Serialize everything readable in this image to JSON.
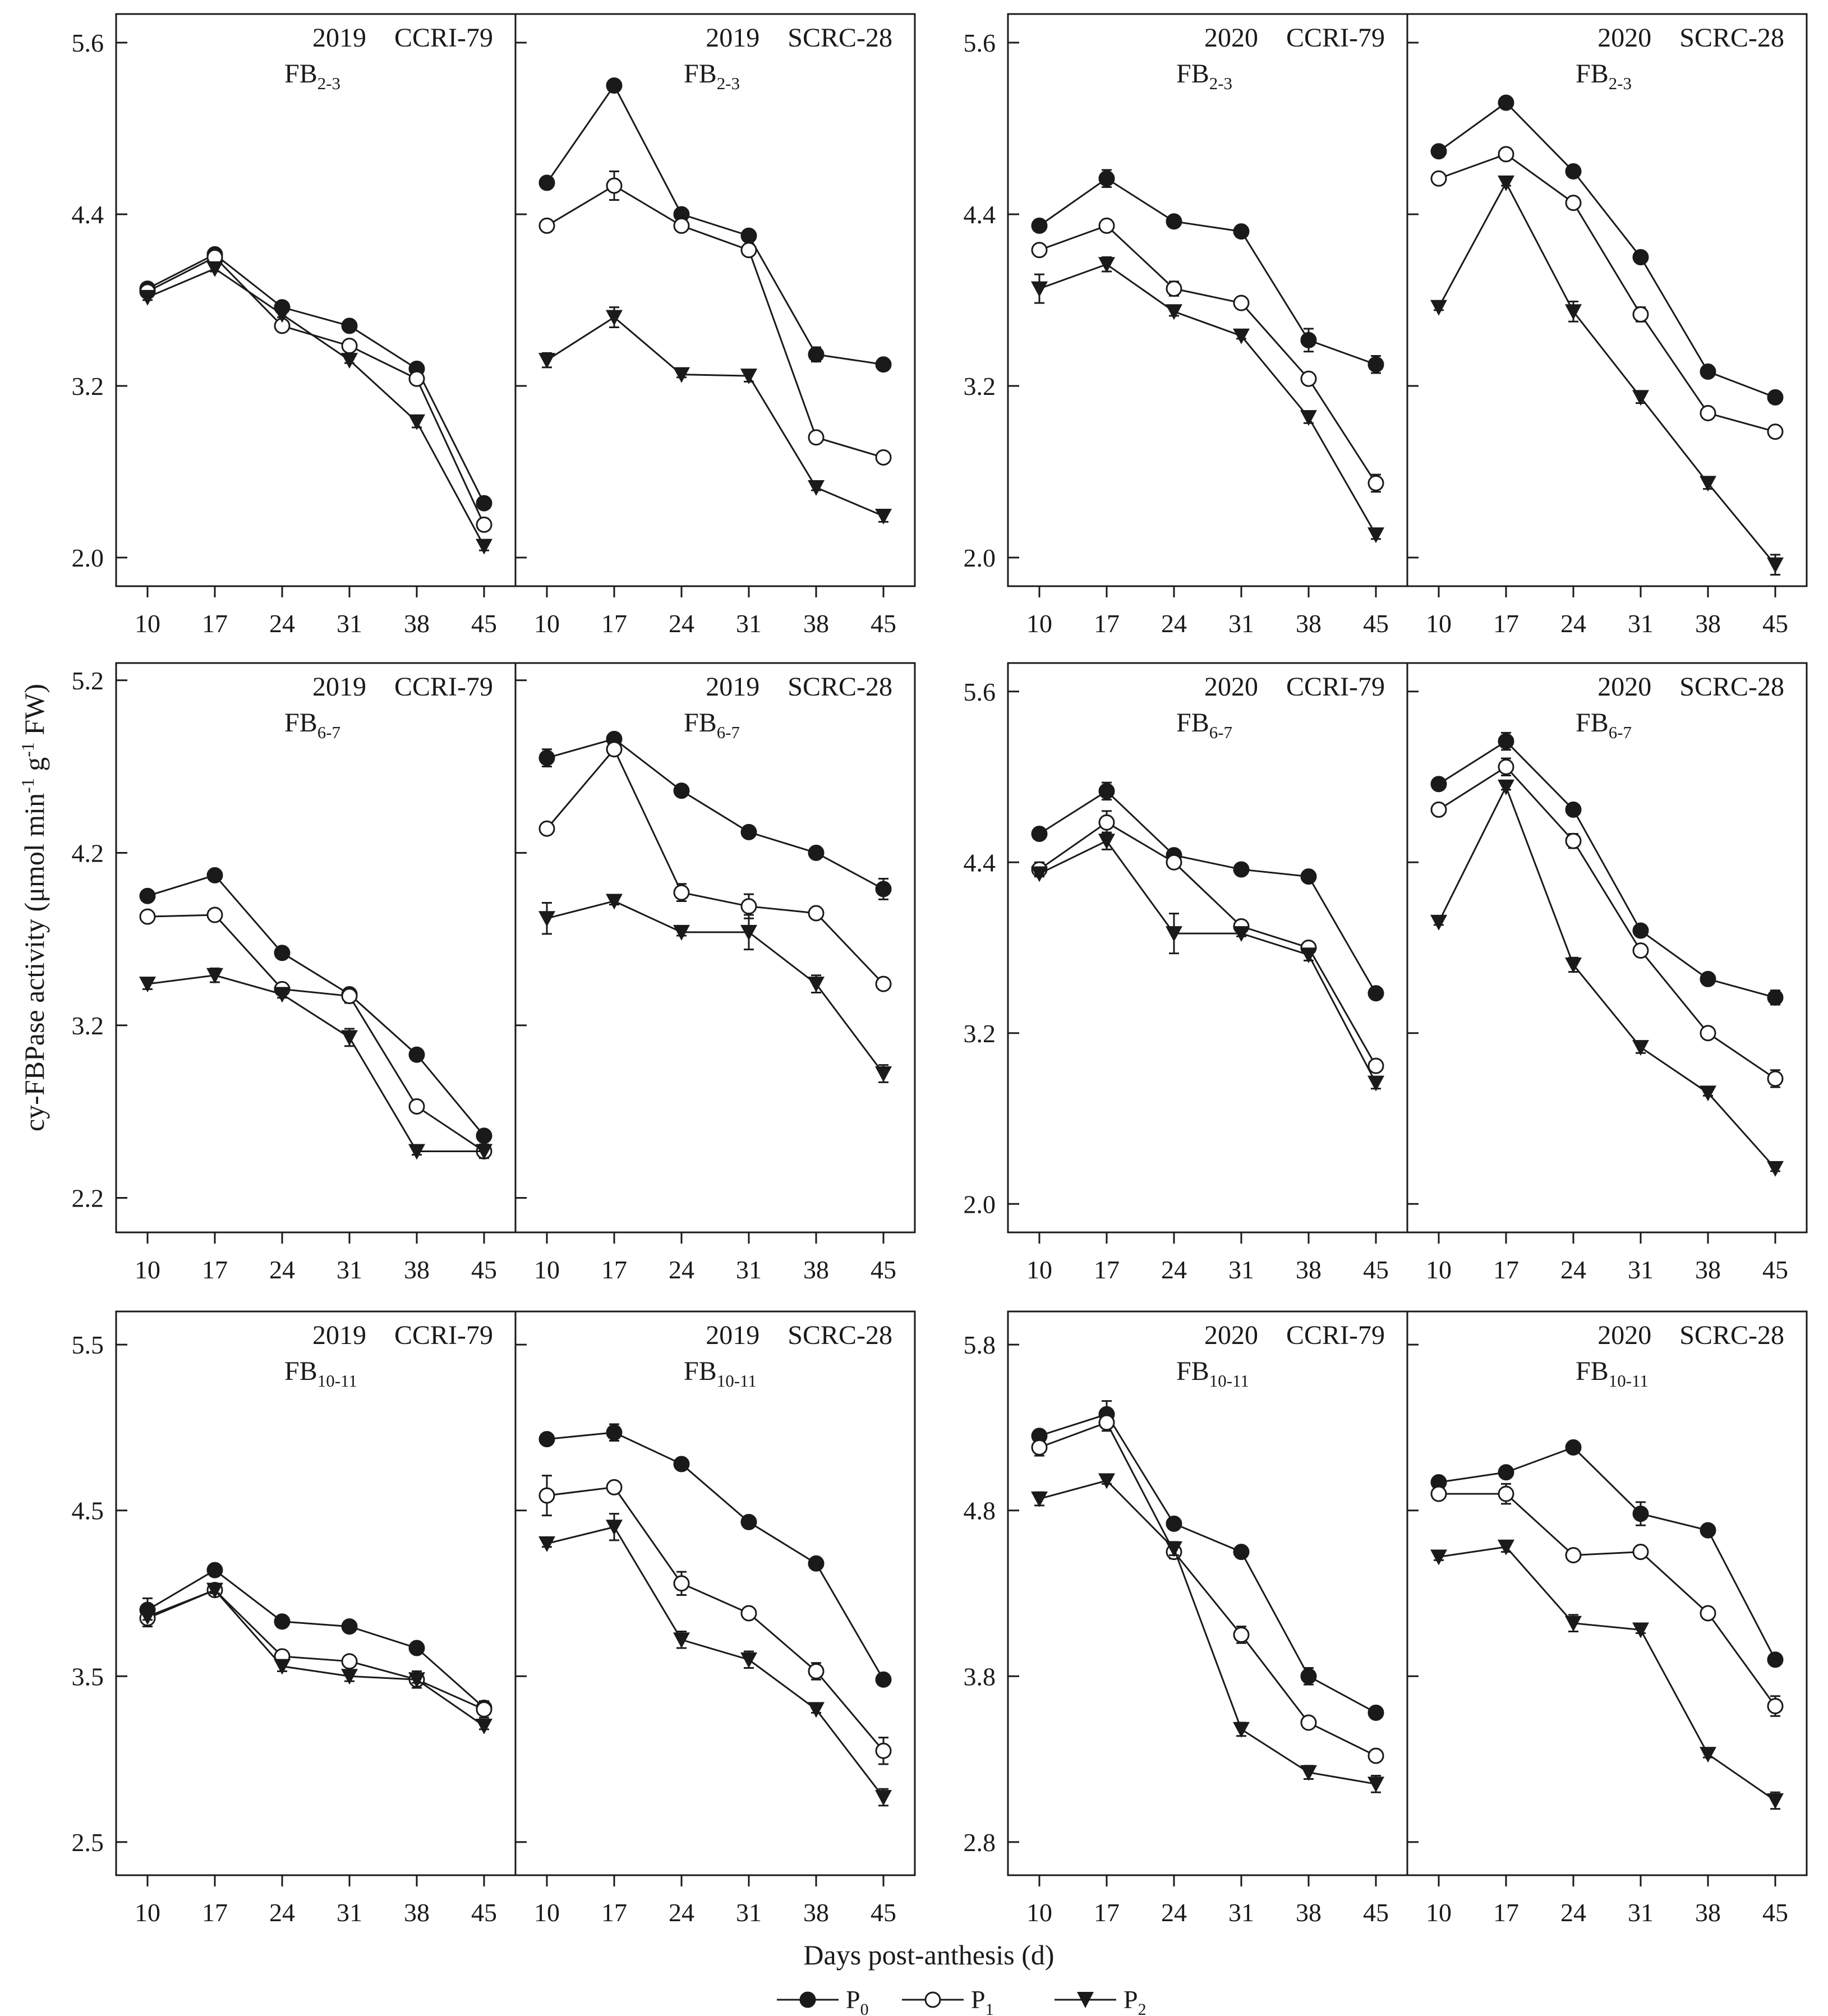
{
  "figure": {
    "ylabel_main": "cy-FBPase activity (μmol min",
    "ylabel_sup1": "-1",
    "ylabel_mid": " g",
    "ylabel_sup2": "-1",
    "ylabel_end": " FW)",
    "xlabel": "Days post-anthesis (d)"
  },
  "legend": [
    {
      "name": "P",
      "sub": "0",
      "marker": "filled-circle"
    },
    {
      "name": "P",
      "sub": "1",
      "marker": "open-circle"
    },
    {
      "name": "P",
      "sub": "2",
      "marker": "filled-triangle"
    }
  ],
  "chart_data": [
    {
      "type": "line",
      "year": "2019",
      "row": 0,
      "col": 0,
      "ylim": [
        1.8,
        5.8
      ],
      "yticks": [
        "2.0",
        "3.2",
        "4.4",
        "5.6"
      ],
      "ytick_values": [
        2.0,
        3.2,
        4.4,
        5.6
      ],
      "categories": [
        "10",
        "17",
        "24",
        "31",
        "38",
        "45"
      ],
      "panels": [
        {
          "cultivar": "CCRI-79",
          "pos": "FB",
          "pos_sub": "2-3",
          "series": [
            {
              "name": "P0",
              "values": [
                3.88,
                4.12,
                3.75,
                3.62,
                3.32,
                2.38
              ],
              "err": [
                0.02,
                0.02,
                0.02,
                0.02,
                0.03,
                0.03
              ]
            },
            {
              "name": "P1",
              "values": [
                3.86,
                4.1,
                3.62,
                3.48,
                3.25,
                2.23
              ],
              "err": [
                0.02,
                0.02,
                0.03,
                0.02,
                0.03,
                0.04
              ]
            },
            {
              "name": "P2",
              "values": [
                3.82,
                4.02,
                3.7,
                3.38,
                2.95,
                2.08
              ],
              "err": [
                0.02,
                0.02,
                0.02,
                0.02,
                0.04,
                0.03
              ]
            }
          ]
        },
        {
          "cultivar": "SCRC-28",
          "pos": "FB",
          "pos_sub": "2-3",
          "series": [
            {
              "name": "P0",
              "values": [
                4.62,
                5.3,
                4.4,
                4.25,
                3.42,
                3.35
              ],
              "err": [
                0.02,
                0.02,
                0.02,
                0.02,
                0.05,
                0.02
              ]
            },
            {
              "name": "P1",
              "values": [
                4.32,
                4.6,
                4.32,
                4.15,
                2.84,
                2.7
              ],
              "err": [
                0.04,
                0.1,
                0.02,
                0.02,
                0.03,
                0.02
              ]
            },
            {
              "name": "P2",
              "values": [
                3.38,
                3.68,
                3.28,
                3.27,
                2.49,
                2.29
              ],
              "err": [
                0.05,
                0.07,
                0.02,
                0.04,
                0.02,
                0.04
              ]
            }
          ]
        }
      ]
    },
    {
      "type": "line",
      "year": "2020",
      "row": 0,
      "col": 1,
      "ylim": [
        1.8,
        5.8
      ],
      "yticks": [
        "2.0",
        "3.2",
        "4.4",
        "5.6"
      ],
      "ytick_values": [
        2.0,
        3.2,
        4.4,
        5.6
      ],
      "categories": [
        "10",
        "17",
        "24",
        "31",
        "38",
        "45"
      ],
      "panels": [
        {
          "cultivar": "CCRI-79",
          "pos": "FB",
          "pos_sub": "2-3",
          "series": [
            {
              "name": "P0",
              "values": [
                4.32,
                4.65,
                4.35,
                4.28,
                3.52,
                3.35
              ],
              "err": [
                0.02,
                0.06,
                0.02,
                0.03,
                0.08,
                0.06
              ]
            },
            {
              "name": "P1",
              "values": [
                4.15,
                4.32,
                3.88,
                3.78,
                3.25,
                2.52
              ],
              "err": [
                0.03,
                0.03,
                0.05,
                0.02,
                0.03,
                0.06
              ]
            },
            {
              "name": "P2",
              "values": [
                3.88,
                4.05,
                3.72,
                3.55,
                2.98,
                2.16
              ],
              "err": [
                0.1,
                0.05,
                0.03,
                0.02,
                0.04,
                0.03
              ]
            }
          ]
        },
        {
          "cultivar": "SCRC-28",
          "pos": "FB",
          "pos_sub": "2-3",
          "series": [
            {
              "name": "P0",
              "values": [
                4.84,
                5.18,
                4.7,
                4.1,
                3.3,
                3.12
              ],
              "err": [
                0.02,
                0.02,
                0.02,
                0.02,
                0.03,
                0.02
              ]
            },
            {
              "name": "P1",
              "values": [
                4.65,
                4.82,
                4.48,
                3.7,
                3.01,
                2.88
              ],
              "err": [
                0.02,
                0.02,
                0.02,
                0.05,
                0.02,
                0.02
              ]
            },
            {
              "name": "P2",
              "values": [
                3.75,
                4.62,
                3.72,
                3.12,
                2.52,
                1.95
              ],
              "err": [
                0.02,
                0.02,
                0.07,
                0.04,
                0.04,
                0.07
              ]
            }
          ]
        }
      ]
    },
    {
      "type": "line",
      "year": "2019",
      "row": 1,
      "col": 0,
      "ylim": [
        2.0,
        5.3
      ],
      "yticks": [
        "2.2",
        "3.2",
        "4.2",
        "5.2"
      ],
      "ytick_values": [
        2.2,
        3.2,
        4.2,
        5.2
      ],
      "categories": [
        "10",
        "17",
        "24",
        "31",
        "38",
        "45"
      ],
      "panels": [
        {
          "cultivar": "CCRI-79",
          "pos": "FB",
          "pos_sub": "6-7",
          "series": [
            {
              "name": "P0",
              "values": [
                3.95,
                4.07,
                3.62,
                3.38,
                3.03,
                2.56
              ],
              "err": [
                0.02,
                0.02,
                0.02,
                0.02,
                0.02,
                0.02
              ]
            },
            {
              "name": "P1",
              "values": [
                3.83,
                3.84,
                3.41,
                3.37,
                2.73,
                2.47
              ],
              "err": [
                0.02,
                0.02,
                0.02,
                0.04,
                0.02,
                0.02
              ]
            },
            {
              "name": "P2",
              "values": [
                3.44,
                3.49,
                3.38,
                3.13,
                2.47,
                2.47
              ],
              "err": [
                0.03,
                0.04,
                0.02,
                0.05,
                0.02,
                0.04
              ]
            }
          ]
        },
        {
          "cultivar": "SCRC-28",
          "pos": "FB",
          "pos_sub": "6-7",
          "series": [
            {
              "name": "P0",
              "values": [
                4.75,
                4.86,
                4.56,
                4.32,
                4.2,
                3.99
              ],
              "err": [
                0.05,
                0.03,
                0.02,
                0.02,
                0.02,
                0.06
              ]
            },
            {
              "name": "P1",
              "values": [
                4.34,
                4.8,
                3.97,
                3.89,
                3.85,
                3.44
              ],
              "err": [
                0.02,
                0.02,
                0.05,
                0.07,
                0.02,
                0.02
              ]
            },
            {
              "name": "P2",
              "values": [
                3.82,
                3.92,
                3.74,
                3.74,
                3.44,
                2.92
              ],
              "err": [
                0.09,
                0.02,
                0.02,
                0.1,
                0.05,
                0.05
              ]
            }
          ]
        }
      ]
    },
    {
      "type": "line",
      "year": "2020",
      "row": 1,
      "col": 1,
      "ylim": [
        1.8,
        5.8
      ],
      "yticks": [
        "2.0",
        "3.2",
        "4.4",
        "5.6"
      ],
      "ytick_values": [
        2.0,
        3.2,
        4.4,
        5.6
      ],
      "categories": [
        "10",
        "17",
        "24",
        "31",
        "38",
        "45"
      ],
      "panels": [
        {
          "cultivar": "CCRI-79",
          "pos": "FB",
          "pos_sub": "6-7",
          "series": [
            {
              "name": "P0",
              "values": [
                4.6,
                4.9,
                4.45,
                4.35,
                4.3,
                3.48
              ],
              "err": [
                0.02,
                0.06,
                0.02,
                0.02,
                0.02,
                0.02
              ]
            },
            {
              "name": "P1",
              "values": [
                4.35,
                4.68,
                4.4,
                3.95,
                3.8,
                2.97
              ],
              "err": [
                0.05,
                0.08,
                0.02,
                0.02,
                0.04,
                0.02
              ]
            },
            {
              "name": "P2",
              "values": [
                4.32,
                4.55,
                3.9,
                3.9,
                3.75,
                2.85
              ],
              "err": [
                0.02,
                0.06,
                0.14,
                0.02,
                0.04,
                0.04
              ]
            }
          ]
        },
        {
          "cultivar": "SCRC-28",
          "pos": "FB",
          "pos_sub": "6-7",
          "series": [
            {
              "name": "P0",
              "values": [
                4.95,
                5.25,
                4.77,
                3.92,
                3.58,
                3.45
              ],
              "err": [
                0.02,
                0.06,
                0.02,
                0.02,
                0.02,
                0.05
              ]
            },
            {
              "name": "P1",
              "values": [
                4.77,
                5.07,
                4.55,
                3.78,
                3.2,
                2.88
              ],
              "err": [
                0.02,
                0.06,
                0.05,
                0.02,
                0.02,
                0.06
              ]
            },
            {
              "name": "P2",
              "values": [
                3.98,
                4.93,
                3.68,
                3.1,
                2.78,
                2.25
              ],
              "err": [
                0.02,
                0.02,
                0.05,
                0.04,
                0.02,
                0.02
              ]
            }
          ]
        }
      ]
    },
    {
      "type": "line",
      "year": "2019",
      "row": 2,
      "col": 0,
      "ylim": [
        2.3,
        5.7
      ],
      "yticks": [
        "2.5",
        "3.5",
        "4.5",
        "5.5"
      ],
      "ytick_values": [
        2.5,
        3.5,
        4.5,
        5.5
      ],
      "categories": [
        "10",
        "17",
        "24",
        "31",
        "38",
        "45"
      ],
      "panels": [
        {
          "cultivar": "CCRI-79",
          "pos": "FB",
          "pos_sub": "10-11",
          "series": [
            {
              "name": "P0",
              "values": [
                3.9,
                4.14,
                3.83,
                3.8,
                3.67,
                3.31
              ],
              "err": [
                0.07,
                0.02,
                0.02,
                0.02,
                0.02,
                0.02
              ]
            },
            {
              "name": "P1",
              "values": [
                3.85,
                4.02,
                3.62,
                3.59,
                3.48,
                3.3
              ],
              "err": [
                0.05,
                0.02,
                0.02,
                0.02,
                0.05,
                0.05
              ]
            },
            {
              "name": "P2",
              "values": [
                3.86,
                4.02,
                3.56,
                3.5,
                3.48,
                3.2
              ],
              "err": [
                0.02,
                0.02,
                0.03,
                0.03,
                0.02,
                0.02
              ]
            }
          ]
        },
        {
          "cultivar": "SCRC-28",
          "pos": "FB",
          "pos_sub": "10-11",
          "series": [
            {
              "name": "P0",
              "values": [
                4.93,
                4.97,
                4.78,
                4.43,
                4.18,
                3.48
              ],
              "err": [
                0.02,
                0.05,
                0.02,
                0.02,
                0.03,
                0.02
              ]
            },
            {
              "name": "P1",
              "values": [
                4.59,
                4.64,
                4.06,
                3.88,
                3.53,
                3.05
              ],
              "err": [
                0.12,
                0.02,
                0.07,
                0.02,
                0.05,
                0.08
              ]
            },
            {
              "name": "P2",
              "values": [
                4.3,
                4.4,
                3.72,
                3.6,
                3.3,
                2.77
              ],
              "err": [
                0.02,
                0.08,
                0.05,
                0.05,
                0.02,
                0.05
              ]
            }
          ]
        }
      ]
    },
    {
      "type": "line",
      "year": "2020",
      "row": 2,
      "col": 1,
      "ylim": [
        2.6,
        6.0
      ],
      "yticks": [
        "2.8",
        "3.8",
        "4.8",
        "5.8"
      ],
      "ytick_values": [
        2.8,
        3.8,
        4.8,
        5.8
      ],
      "categories": [
        "10",
        "17",
        "24",
        "31",
        "38",
        "45"
      ],
      "panels": [
        {
          "cultivar": "CCRI-79",
          "pos": "FB",
          "pos_sub": "10-11",
          "series": [
            {
              "name": "P0",
              "values": [
                5.25,
                5.38,
                4.72,
                4.55,
                3.8,
                3.58
              ],
              "err": [
                0.02,
                0.08,
                0.02,
                0.02,
                0.05,
                0.02
              ]
            },
            {
              "name": "P1",
              "values": [
                5.18,
                5.33,
                4.55,
                4.05,
                3.52,
                3.32
              ],
              "err": [
                0.05,
                0.05,
                0.04,
                0.05,
                0.02,
                0.02
              ]
            },
            {
              "name": "P2",
              "values": [
                4.87,
                4.98,
                4.57,
                3.48,
                3.22,
                3.15
              ],
              "err": [
                0.04,
                0.02,
                0.04,
                0.04,
                0.04,
                0.05
              ]
            }
          ]
        },
        {
          "cultivar": "SCRC-28",
          "pos": "FB",
          "pos_sub": "10-11",
          "series": [
            {
              "name": "P0",
              "values": [
                4.97,
                5.03,
                5.18,
                4.78,
                4.68,
                3.9
              ],
              "err": [
                0.02,
                0.02,
                0.02,
                0.07,
                0.02,
                0.02
              ]
            },
            {
              "name": "P1",
              "values": [
                4.9,
                4.9,
                4.53,
                4.55,
                4.18,
                3.62
              ],
              "err": [
                0.02,
                0.06,
                0.02,
                0.03,
                0.02,
                0.06
              ]
            },
            {
              "name": "P2",
              "values": [
                4.52,
                4.58,
                4.12,
                4.08,
                3.33,
                3.05
              ],
              "err": [
                0.02,
                0.03,
                0.05,
                0.02,
                0.02,
                0.05
              ]
            }
          ]
        }
      ]
    }
  ]
}
